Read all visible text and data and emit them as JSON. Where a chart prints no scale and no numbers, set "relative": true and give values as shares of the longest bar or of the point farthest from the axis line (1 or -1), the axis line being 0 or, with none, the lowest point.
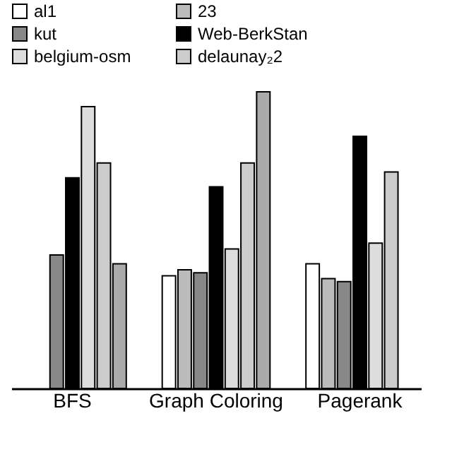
{
  "chart_data": {
    "type": "bar",
    "relative": true,
    "legend": "top",
    "categories": [
      "BFS",
      "Graph Coloring",
      "Pagerank"
    ],
    "series": [
      {
        "name": "al1",
        "color": "#ffffff",
        "values": [
          null,
          0.38,
          0.42
        ]
      },
      {
        "name": "23",
        "color": "#bbbbbb",
        "values": [
          null,
          0.4,
          0.37
        ]
      },
      {
        "name": "kut",
        "color": "#888888",
        "values": [
          0.45,
          0.39,
          0.36
        ]
      },
      {
        "name": "Web-BerkStan",
        "color": "#000000",
        "values": [
          0.71,
          0.68,
          0.85
        ]
      },
      {
        "name": "belgium-osm",
        "color": "#dddddd",
        "values": [
          0.95,
          0.47,
          0.49
        ]
      },
      {
        "name": "delaunay₂2",
        "color": "#cccccc",
        "values": [
          0.76,
          0.76,
          0.73
        ]
      },
      {
        "color": "#aaaaaa",
        "values": [
          0.42,
          1,
          null
        ]
      }
    ]
  }
}
